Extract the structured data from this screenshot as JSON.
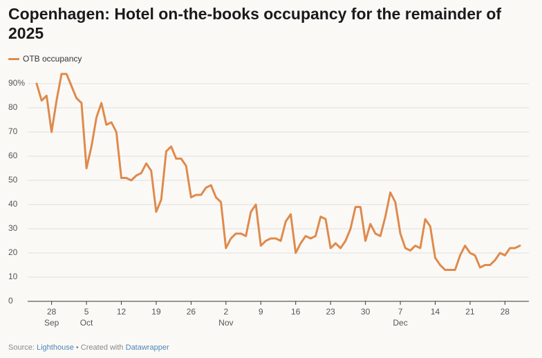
{
  "chart_data": {
    "type": "line",
    "title": "Copenhagen: Hotel on-the-books occupancy for the remainder of 2025",
    "x": [
      "Sep 25",
      "Sep 26",
      "Sep 27",
      "Sep 28",
      "Sep 29",
      "Sep 30",
      "Oct 1",
      "Oct 2",
      "Oct 3",
      "Oct 4",
      "Oct 5",
      "Oct 6",
      "Oct 7",
      "Oct 8",
      "Oct 9",
      "Oct 10",
      "Oct 11",
      "Oct 12",
      "Oct 13",
      "Oct 14",
      "Oct 15",
      "Oct 16",
      "Oct 17",
      "Oct 18",
      "Oct 19",
      "Oct 20",
      "Oct 21",
      "Oct 22",
      "Oct 23",
      "Oct 24",
      "Oct 25",
      "Oct 26",
      "Oct 27",
      "Oct 28",
      "Oct 29",
      "Oct 30",
      "Oct 31",
      "Nov 1",
      "Nov 2",
      "Nov 3",
      "Nov 4",
      "Nov 5",
      "Nov 6",
      "Nov 7",
      "Nov 8",
      "Nov 9",
      "Nov 10",
      "Nov 11",
      "Nov 12",
      "Nov 13",
      "Nov 14",
      "Nov 15",
      "Nov 16",
      "Nov 17",
      "Nov 18",
      "Nov 19",
      "Nov 20",
      "Nov 21",
      "Nov 22",
      "Nov 23",
      "Nov 24",
      "Nov 25",
      "Nov 26",
      "Nov 27",
      "Nov 28",
      "Nov 29",
      "Nov 30",
      "Dec 1",
      "Dec 2",
      "Dec 3",
      "Dec 4",
      "Dec 5",
      "Dec 6",
      "Dec 7",
      "Dec 8",
      "Dec 9",
      "Dec 10",
      "Dec 11",
      "Dec 12",
      "Dec 13",
      "Dec 14",
      "Dec 15",
      "Dec 16",
      "Dec 17",
      "Dec 18",
      "Dec 19",
      "Dec 20",
      "Dec 21",
      "Dec 22",
      "Dec 23",
      "Dec 24",
      "Dec 25",
      "Dec 26",
      "Dec 27",
      "Dec 28",
      "Dec 29",
      "Dec 30",
      "Dec 31"
    ],
    "series": [
      {
        "name": "OTB occupancy",
        "color": "#df8a4c",
        "values": [
          90,
          83,
          85,
          70,
          83,
          94,
          94,
          89,
          84,
          82,
          55,
          64,
          76,
          82,
          73,
          74,
          70,
          51,
          51,
          50,
          52,
          53,
          57,
          54,
          37,
          42,
          62,
          64,
          59,
          59,
          56,
          43,
          44,
          44,
          47,
          48,
          43,
          41,
          22,
          26,
          28,
          28,
          27,
          37,
          40,
          23,
          25,
          26,
          26,
          25,
          33,
          36,
          20,
          24,
          27,
          26,
          27,
          35,
          34,
          22,
          24,
          22,
          25,
          30,
          39,
          39,
          25,
          32,
          28,
          27,
          35,
          45,
          41,
          28,
          22,
          21,
          23,
          22,
          34,
          31,
          18,
          15,
          13,
          13,
          13,
          19,
          23,
          20,
          19,
          14,
          15,
          15,
          17,
          20,
          19,
          22,
          22,
          23
        ]
      }
    ],
    "ylim": [
      0,
      90
    ],
    "yticks": [
      0,
      10,
      20,
      30,
      40,
      50,
      60,
      70,
      80,
      {
        "value": 90,
        "label": "90%"
      }
    ],
    "xticks": [
      {
        "value": "Sep 28",
        "label": "28"
      },
      {
        "value": "Oct 5",
        "label": "5"
      },
      {
        "value": "Oct 12",
        "label": "12"
      },
      {
        "value": "Oct 19",
        "label": "19"
      },
      {
        "value": "Oct 26",
        "label": "26"
      },
      {
        "value": "Nov 2",
        "label": "2"
      },
      {
        "value": "Nov 9",
        "label": "9"
      },
      {
        "value": "Nov 16",
        "label": "16"
      },
      {
        "value": "Nov 23",
        "label": "23"
      },
      {
        "value": "Nov 30",
        "label": "30"
      },
      {
        "value": "Dec 7",
        "label": "7"
      },
      {
        "value": "Dec 14",
        "label": "14"
      },
      {
        "value": "Dec 21",
        "label": "21"
      },
      {
        "value": "Dec 28",
        "label": "28"
      }
    ],
    "xtick_months": [
      {
        "value": "Sep 28",
        "label": "Sep"
      },
      {
        "value": "Oct 5",
        "label": "Oct"
      },
      {
        "value": "Nov 2",
        "label": "Nov"
      },
      {
        "value": "Dec 7",
        "label": "Dec"
      }
    ],
    "grid": true,
    "legend": "top-left",
    "footer": {
      "source_label": "Source:",
      "source": "Lighthouse",
      "separator": "•",
      "credit_label": "Created with",
      "credit": "Datawrapper"
    }
  }
}
